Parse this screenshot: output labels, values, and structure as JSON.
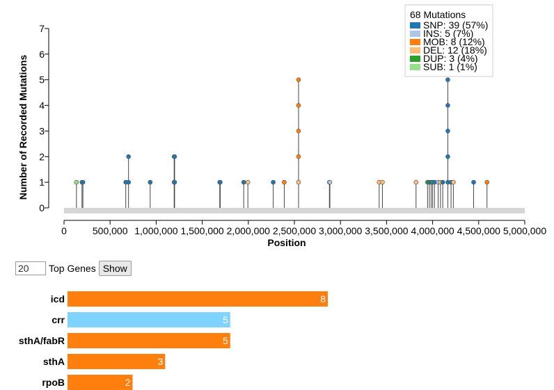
{
  "colors": {
    "SNP": "#1f77b4",
    "INS": "#aec7e8",
    "MOB": "#ff7f0e",
    "DEL": "#ffbb78",
    "DUP": "#2ca02c",
    "SUB": "#98df8a",
    "crr": "#7fd4ff",
    "genome_bar": "#d6d6d6"
  },
  "legend": {
    "title": "68 Mutations",
    "entries": [
      {
        "type": "SNP",
        "label": "SNP: 39 (57%)"
      },
      {
        "type": "INS",
        "label": "INS: 5 (7%)"
      },
      {
        "type": "MOB",
        "label": "MOB: 8 (12%)"
      },
      {
        "type": "DEL",
        "label": "DEL: 12 (18%)"
      },
      {
        "type": "DUP",
        "label": "DUP: 3 (4%)"
      },
      {
        "type": "SUB",
        "label": "SUB: 1 (1%)"
      }
    ]
  },
  "controls": {
    "top_genes_value": "20",
    "top_genes_label": "Top Genes",
    "show_button": "Show"
  },
  "chart_data": [
    {
      "type": "scatter",
      "xlabel": "Position",
      "ylabel": "Number of Recorded Mutations",
      "xlim": [
        0,
        5000000
      ],
      "ylim": [
        0,
        7
      ],
      "xticks": [
        0,
        500000,
        1000000,
        1500000,
        2000000,
        2500000,
        3000000,
        3500000,
        4000000,
        4500000,
        5000000
      ],
      "xtick_labels": [
        "0",
        "500,000",
        "1,000,000",
        "1,500,000",
        "2,000,000",
        "2,500,000",
        "3,000,000",
        "3,500,000",
        "4,000,000",
        "4,500,000",
        "5,000,000"
      ],
      "yticks": [
        0,
        1,
        2,
        3,
        4,
        5,
        6,
        7
      ],
      "ytick_labels": [
        "0",
        "1",
        "2",
        "3",
        "4",
        "5",
        "6",
        "7"
      ],
      "stems": [
        {
          "x": 135000,
          "points": [
            "SUB"
          ]
        },
        {
          "x": 195000,
          "points": [
            "SNP"
          ]
        },
        {
          "x": 205000,
          "points": [
            "SNP"
          ]
        },
        {
          "x": 670000,
          "points": [
            "SNP"
          ]
        },
        {
          "x": 700000,
          "points": [
            "SNP",
            "SNP"
          ]
        },
        {
          "x": 935000,
          "points": [
            "SNP"
          ]
        },
        {
          "x": 1195000,
          "points": [
            "SNP",
            "SNP"
          ]
        },
        {
          "x": 1200000,
          "points": [
            "SNP",
            "SNP"
          ]
        },
        {
          "x": 1690000,
          "points": [
            "SNP"
          ]
        },
        {
          "x": 1695000,
          "points": [
            "SNP"
          ]
        },
        {
          "x": 1950000,
          "points": [
            "SNP"
          ]
        },
        {
          "x": 1995000,
          "points": [
            "DEL"
          ]
        },
        {
          "x": 2270000,
          "points": [
            "SNP"
          ]
        },
        {
          "x": 2390000,
          "points": [
            "MOB"
          ]
        },
        {
          "x": 2545000,
          "points": [
            "DEL",
            "MOB",
            "MOB",
            "MOB",
            "MOB"
          ]
        },
        {
          "x": 2880000,
          "points": [
            "INS"
          ]
        },
        {
          "x": 2885000,
          "points": [
            "INS"
          ]
        },
        {
          "x": 3420000,
          "points": [
            "DEL"
          ]
        },
        {
          "x": 3455000,
          "points": [
            "DEL"
          ]
        },
        {
          "x": 3820000,
          "points": [
            "DEL"
          ]
        },
        {
          "x": 3945000,
          "points": [
            "DUP"
          ]
        },
        {
          "x": 3965000,
          "points": [
            "SNP"
          ]
        },
        {
          "x": 3985000,
          "points": [
            "SNP"
          ]
        },
        {
          "x": 4000000,
          "points": [
            "DUP"
          ]
        },
        {
          "x": 4020000,
          "points": [
            "SNP"
          ]
        },
        {
          "x": 4060000,
          "points": [
            "INS"
          ]
        },
        {
          "x": 4085000,
          "points": [
            "DEL"
          ]
        },
        {
          "x": 4110000,
          "points": [
            "SNP"
          ]
        },
        {
          "x": 4165000,
          "points": [
            "SNP",
            "SNP",
            "SNP",
            "SNP",
            "SNP"
          ]
        },
        {
          "x": 4200000,
          "points": [
            "SNP"
          ]
        },
        {
          "x": 4225000,
          "points": [
            "DEL"
          ]
        },
        {
          "x": 4445000,
          "points": [
            "SNP"
          ]
        },
        {
          "x": 4590000,
          "points": [
            "MOB"
          ]
        }
      ]
    },
    {
      "type": "bar",
      "orientation": "horizontal",
      "categories": [
        "icd",
        "crr",
        "sthA/fabR",
        "sthA",
        "rpoB"
      ],
      "values": [
        8,
        5,
        5,
        3,
        2
      ],
      "types": [
        "MOB",
        "crr",
        "MOB",
        "MOB",
        "MOB"
      ]
    }
  ]
}
